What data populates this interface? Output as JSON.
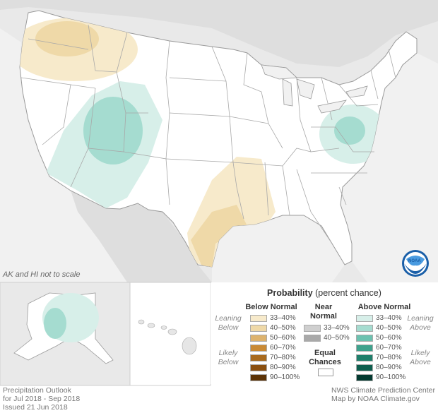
{
  "title": {
    "main": "Probability",
    "sub": "(percent chance)"
  },
  "notes": {
    "scale": "AK and HI not to scale"
  },
  "footer": {
    "left": [
      "Precipitation Outlook",
      "for Jul 2018 - Sep 2018",
      "Issued 21 Jun 2018"
    ],
    "right": [
      "NWS Climate Prediction Center",
      "Map by NOAA Climate.gov"
    ]
  },
  "logo": {
    "label": "NOAA"
  },
  "legend": {
    "below": {
      "header": "Below Normal",
      "leaning": [
        "Leaning",
        "Below"
      ],
      "likely": [
        "Likely",
        "Below"
      ],
      "ranges": [
        "33–40%",
        "40–50%",
        "50–60%",
        "60–70%",
        "70–80%",
        "80–90%",
        "90–100%"
      ],
      "colors": [
        "#f7eacb",
        "#efd9a8",
        "#ddb36e",
        "#c98a35",
        "#a86a1e",
        "#8a4f10",
        "#5c3306"
      ]
    },
    "near": {
      "header": [
        "Near",
        "Normal"
      ],
      "ranges": [
        "33–40%",
        "40–50%"
      ],
      "colors": [
        "#cfcfcf",
        "#a9a9a9"
      ],
      "equal": [
        "Equal",
        "Chances"
      ]
    },
    "above": {
      "header": "Above Normal",
      "leaning": [
        "Leaning",
        "Above"
      ],
      "likely": [
        "Likely",
        "Above"
      ],
      "ranges": [
        "33–40%",
        "40–50%",
        "50–60%",
        "60–70%",
        "70–80%",
        "80–90%",
        "90–100%"
      ],
      "colors": [
        "#d7efe9",
        "#a5dcd0",
        "#6cc2b0",
        "#3ea28d",
        "#1f7f6b",
        "#0d5e4e",
        "#033a30"
      ]
    }
  },
  "regions": {
    "below_normal": [
      "Pacific Northwest",
      "Southern Plains / Lower Mississippi"
    ],
    "above_normal": [
      "Southwest / Four Corners",
      "Mid-Atlantic",
      "Alaska (south)"
    ]
  }
}
